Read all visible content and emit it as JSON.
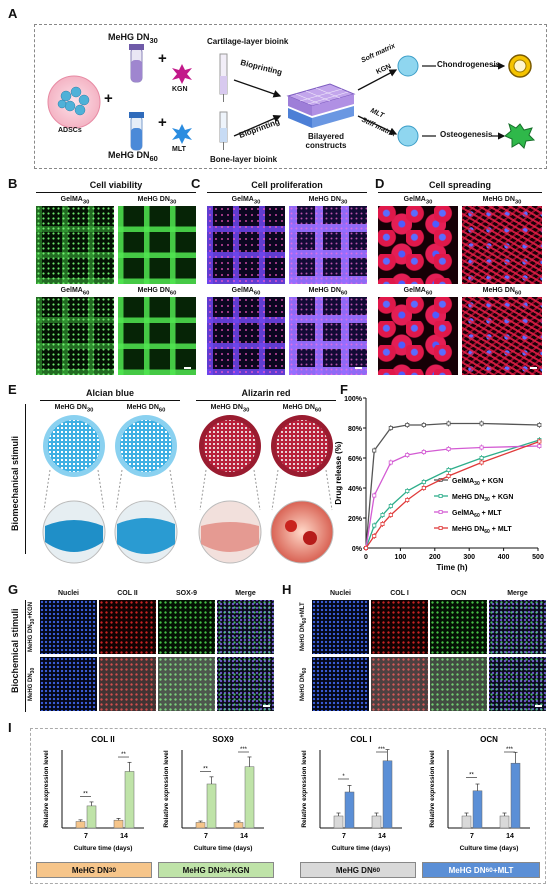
{
  "panel_labels": {
    "a": "A",
    "b": "B",
    "c": "C",
    "d": "D",
    "e": "E",
    "f": "F",
    "g": "G",
    "h": "H",
    "i": "I"
  },
  "panel_a": {
    "cartilage_ink": "MeHG DN",
    "cartilage_sub": "30",
    "bone_ink": "MeHG DN",
    "bone_sub": "60",
    "kgn": "KGN",
    "mlt": "MLT",
    "cartilage_bioink": "Cartilage-layer bioink",
    "bone_bioink": "Bone-layer bioink",
    "adscs": "ADSCs",
    "bioprinting_top": "Bioprinting",
    "bioprinting_bottom": "Bioprinting",
    "bilayered": "Bilayered",
    "constructs": "constructs",
    "soft_matrix": "Soft matrix",
    "soft_kgn": "KGN",
    "mlt_route": "MLT",
    "stiff_matrix": "Stiff matrix",
    "chondrogenesis": "Chondrogenesis",
    "osteogenesis": "Osteogenesis",
    "plus1": "+",
    "plus2": "+",
    "plus3": "+"
  },
  "panel_b": {
    "title": "Cell viability",
    "gelma30": "GelMA",
    "s30": "30",
    "mehg30": "MeHG DN",
    "gelma60": "GelMA",
    "s60": "60",
    "mehg60": "MeHG DN"
  },
  "panel_c": {
    "title": "Cell proliferation",
    "gelma30": "GelMA",
    "s30": "30",
    "mehg30": "MeHG DN",
    "gelma60": "GelMA",
    "s60": "60",
    "mehg60": "MeHG DN"
  },
  "panel_d": {
    "title": "Cell spreading",
    "gelma30": "GelMA",
    "s30": "30",
    "mehg30": "MeHG DN",
    "gelma60": "GelMA",
    "s60": "60",
    "mehg60": "MeHG DN"
  },
  "panel_e": {
    "alcian": "Alcian blue",
    "alizarin": "Alizarin red",
    "mehg": "MeHG DN",
    "s30": "30",
    "s60": "60",
    "side": "Biomechanical stimuli"
  },
  "panel_g": {
    "nuclei": "Nuclei",
    "col": "COL II",
    "marker": "SOX-9",
    "merge": "Merge",
    "row1": "MeHG DN",
    "row1_sub": "30",
    "row1_suffix": "+KGN",
    "row2": "MeHG DN",
    "row2_sub": "30",
    "side": "Biochemical stimuli"
  },
  "panel_h": {
    "nuclei": "Nuclei",
    "col": "COL I",
    "marker": "OCN",
    "merge": "Merge",
    "row1": "MeHG DN",
    "row1_sub": "60",
    "row1_suffix": "+MLT",
    "row2": "MeHG DN",
    "row2_sub": "60"
  },
  "colors": {
    "control_fill": "#f6c58a",
    "kgn_fill": "#bfe3a8",
    "control_b_fill": "#d9d9d9",
    "mlt_fill": "#5b8fd6"
  },
  "legend_i": {
    "left_ctrl": "MeHG DN",
    "left_ctrl_sub": "30",
    "left_trt": "MeHG DN",
    "left_trt_sub": "30",
    "left_trt_suffix": "+KGN",
    "right_ctrl": "MeHG DN",
    "right_ctrl_sub": "60",
    "right_trt": "MeHG DN",
    "right_trt_sub": "60",
    "right_trt_suffix": "+MLT"
  },
  "chart_data": [
    {
      "type": "line",
      "panel": "F",
      "xlabel": "Time (h)",
      "ylabel": "Drug release (%)",
      "xlim": [
        0,
        500
      ],
      "ylim": [
        0,
        100
      ],
      "xticks": [
        0,
        100,
        200,
        300,
        400,
        500
      ],
      "yticks": [
        "0%",
        "20%",
        "40%",
        "60%",
        "80%",
        "100%"
      ],
      "legend_position": "center-right",
      "series": [
        {
          "name": "GelMA30 + KGN",
          "label": "GelMA",
          "sub": "30",
          "suffix": " + KGN",
          "color": "#555555",
          "x": [
            0,
            24,
            72,
            120,
            168,
            240,
            336,
            504
          ],
          "y": [
            0,
            65,
            80,
            82,
            82,
            83,
            83,
            82
          ]
        },
        {
          "name": "MeHG DN30 + KGN",
          "label": "MeHG DN",
          "sub": "30",
          "suffix": " + KGN",
          "color": "#2eae8b",
          "x": [
            0,
            24,
            48,
            72,
            120,
            168,
            240,
            336,
            504
          ],
          "y": [
            0,
            15,
            22,
            28,
            38,
            44,
            52,
            60,
            72
          ]
        },
        {
          "name": "GelMA60 + MLT",
          "label": "GelMA",
          "sub": "60",
          "suffix": " + MLT",
          "color": "#d35bd3",
          "x": [
            0,
            24,
            72,
            120,
            168,
            240,
            336,
            504
          ],
          "y": [
            0,
            35,
            57,
            62,
            64,
            66,
            67,
            68
          ]
        },
        {
          "name": "MeHG DN60 + MLT",
          "label": "MeHG DN",
          "sub": "60",
          "suffix": " + MLT",
          "color": "#e03a3a",
          "x": [
            0,
            24,
            48,
            72,
            120,
            168,
            240,
            336,
            504
          ],
          "y": [
            0,
            8,
            16,
            22,
            32,
            40,
            48,
            57,
            71
          ]
        }
      ]
    },
    {
      "type": "bar",
      "panel": "I",
      "title": "COL II",
      "ylabel": "Relative expression level",
      "xlabel": "Culture time (days)",
      "categories": [
        "7",
        "14"
      ],
      "series": [
        {
          "values": [
            1.0,
            1.2
          ]
        },
        {
          "values": [
            3.4,
            8.7
          ]
        }
      ],
      "ylim": [
        0,
        12
      ],
      "significance": [
        "**",
        "**"
      ]
    },
    {
      "type": "bar",
      "panel": "I",
      "title": "SOX9",
      "ylabel": "Relative expression level",
      "xlabel": "Culture time (days)",
      "categories": [
        "7",
        "14"
      ],
      "series": [
        {
          "values": [
            1.0,
            1.0
          ]
        },
        {
          "values": [
            7.9,
            11.0
          ]
        }
      ],
      "ylim": [
        0,
        14
      ],
      "significance": [
        "**",
        "***"
      ]
    },
    {
      "type": "bar",
      "panel": "I",
      "title": "COL I",
      "ylabel": "Relative expression level",
      "xlabel": "Culture time (days)",
      "categories": [
        "7",
        "14"
      ],
      "series": [
        {
          "values": [
            1.0,
            1.0
          ]
        },
        {
          "values": [
            3.0,
            5.6
          ]
        }
      ],
      "ylim": [
        0,
        6.5
      ],
      "significance": [
        "*",
        "***"
      ]
    },
    {
      "type": "bar",
      "panel": "I",
      "title": "OCN",
      "ylabel": "Relative expression level",
      "xlabel": "Culture time (days)",
      "categories": [
        "7",
        "14"
      ],
      "series": [
        {
          "values": [
            1.0,
            1.0
          ]
        },
        {
          "values": [
            3.1,
            5.4
          ]
        }
      ],
      "ylim": [
        0,
        6.5
      ],
      "significance": [
        "**",
        "***"
      ]
    }
  ]
}
